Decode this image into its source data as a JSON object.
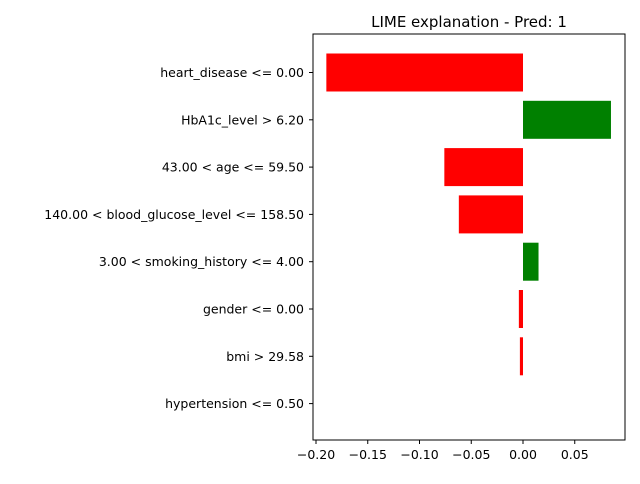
{
  "chart_data": {
    "type": "bar",
    "orientation": "horizontal",
    "title": "LIME explanation - Pred: 1",
    "xlabel": "",
    "ylabel": "",
    "categories": [
      "heart_disease <= 0.00",
      "HbA1c_level > 6.20",
      "43.00 < age <= 59.50",
      "140.00 < blood_glucose_level <= 158.50",
      "3.00 < smoking_history <= 4.00",
      "gender <= 0.00",
      "bmi > 29.58",
      "hypertension <= 0.50"
    ],
    "values": [
      -0.19,
      0.085,
      -0.076,
      -0.062,
      0.015,
      -0.004,
      -0.003,
      0.0
    ],
    "xlim": [
      -0.2,
      0.1
    ],
    "xticks": [
      -0.2,
      -0.15,
      -0.1,
      -0.05,
      0.0,
      0.05
    ],
    "xtick_labels": [
      "−0.20",
      "−0.15",
      "−0.10",
      "−0.05",
      "0.00",
      "0.05"
    ],
    "colors": {
      "positive": "#008000",
      "negative": "#ff0000"
    },
    "grid": false,
    "legend": "none"
  }
}
